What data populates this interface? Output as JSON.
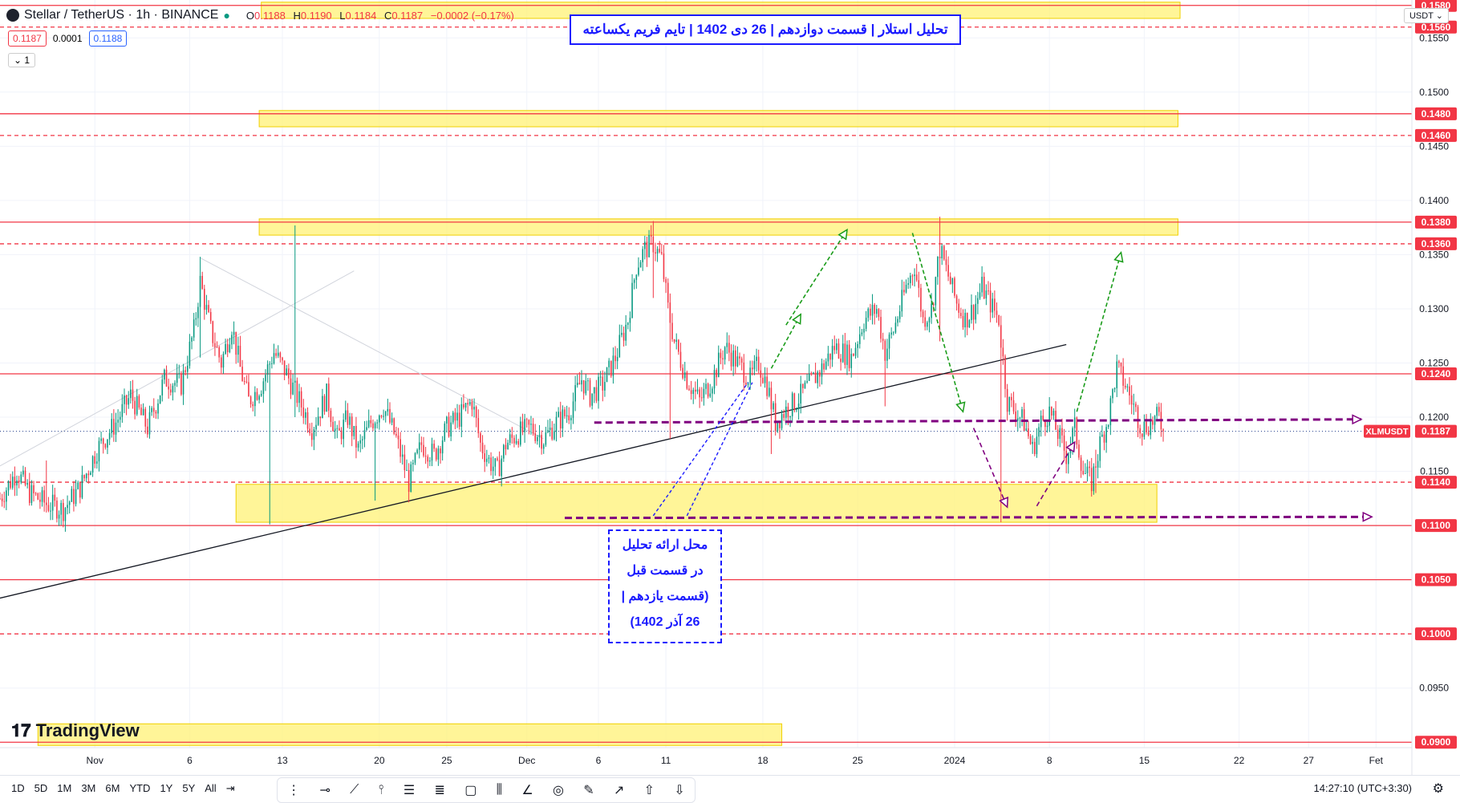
{
  "header": {
    "symbol_label": "Stellar / TetherUS · 1h · BINANCE",
    "ohlc": [
      {
        "k": "O",
        "v": "0.1188"
      },
      {
        "k": "H",
        "v": "0.1190"
      },
      {
        "k": "L",
        "v": "0.1184"
      },
      {
        "k": "C",
        "v": "0.1187"
      },
      {
        "k": "",
        "v": "−0.0002 (−0.17%)"
      }
    ],
    "sell_price": "0.1187",
    "spread": "0.0001",
    "buy_price": "0.1188",
    "collapse_label": "1",
    "currency": "USDT"
  },
  "title": "تحلیل استلار | قسمت دوازدهم | 26 دی 1402 | تایم فریم یکساعته",
  "note_lines": [
    "محل ارائه تحلیل",
    "در قسمت قبل",
    "(قسمت یازدهم |",
    "26 آذر 1402)"
  ],
  "colors": {
    "up": "#089981",
    "down": "#f23645",
    "level_line": "#f23645",
    "zone": "#fff176",
    "green_arrow": "#1a9c1a",
    "purple": "#800080",
    "blue_note": "#1a1aff",
    "trendline": "#131722",
    "price_tag": "#f23645",
    "axis_text": "#131722"
  },
  "chart_data": {
    "type": "candlestick",
    "symbol": "XLMUSDT",
    "last_price": 0.1187,
    "ylim": [
      0.0895,
      0.1585
    ],
    "y_ticks": [
      "0.0950",
      "0.1000",
      "0.1050",
      "0.1100",
      "0.1150",
      "0.1200",
      "0.1250",
      "0.1300",
      "0.1350",
      "0.1400",
      "0.1450",
      "0.1500",
      "0.1550"
    ],
    "x_ticks": [
      {
        "label": "Nov",
        "idx": 45
      },
      {
        "label": "6",
        "idx": 90
      },
      {
        "label": "13",
        "idx": 134
      },
      {
        "label": "20",
        "idx": 180
      },
      {
        "label": "25",
        "idx": 212
      },
      {
        "label": "Dec",
        "idx": 250
      },
      {
        "label": "6",
        "idx": 284
      },
      {
        "label": "11",
        "idx": 316
      },
      {
        "label": "18",
        "idx": 362
      },
      {
        "label": "25",
        "idx": 407
      },
      {
        "label": "2024",
        "idx": 453
      },
      {
        "label": "8",
        "idx": 498
      },
      {
        "label": "15",
        "idx": 543
      },
      {
        "label": "22",
        "idx": 588
      },
      {
        "label": "27",
        "idx": 621
      },
      {
        "label": "Fet",
        "idx": 653
      }
    ],
    "n_slots": 670,
    "last_index": 552,
    "solid_levels": [
      0.158,
      0.148,
      0.138,
      0.124,
      0.11,
      0.105,
      0.09
    ],
    "dashed_levels": [
      0.156,
      0.146,
      0.136,
      0.114,
      0.1
    ],
    "level_tags": [
      "0.1580",
      "0.1560",
      "0.1480",
      "0.1460",
      "0.1380",
      "0.1360",
      "0.1240",
      "0.1140",
      "0.1100",
      "0.1050",
      "0.1000",
      "0.0900"
    ],
    "zones": [
      {
        "i0": 124,
        "i1": 560,
        "p0": 0.1568,
        "p1": 0.1583
      },
      {
        "i0": 123,
        "i1": 559,
        "p0": 0.1468,
        "p1": 0.1483
      },
      {
        "i0": 123,
        "i1": 559,
        "p0": 0.1368,
        "p1": 0.1383
      },
      {
        "i0": 112,
        "i1": 549,
        "p0": 0.1103,
        "p1": 0.1138
      },
      {
        "i0": 18,
        "i1": 371,
        "p0": 0.0897,
        "p1": 0.0917
      }
    ],
    "trendline": {
      "i0": 0,
      "p0": 0.1033,
      "i1": 506,
      "p1": 0.1267
    },
    "thin_lines": [
      {
        "i0": 0,
        "p0": 0.1155,
        "i1": 168,
        "p1": 0.1335
      },
      {
        "i0": 95,
        "p0": 0.1347,
        "i1": 258,
        "p1": 0.118
      }
    ],
    "purple_lines": [
      {
        "i0": 282,
        "p0": 0.1195,
        "i1": 646,
        "p1": 0.1198,
        "arrow": true
      },
      {
        "i0": 268,
        "p0": 0.1107,
        "i1": 651,
        "p1": 0.1108,
        "arrow": true
      },
      {
        "i0": 462,
        "p0": 0.119,
        "i1": 478,
        "p1": 0.1117,
        "arrow": true
      },
      {
        "i0": 492,
        "p0": 0.1118,
        "i1": 510,
        "p1": 0.1177,
        "arrow": true
      }
    ],
    "green_arrows": [
      {
        "i0": 366,
        "p0": 0.1245,
        "i1": 380,
        "p1": 0.1295
      },
      {
        "i0": 373,
        "p0": 0.1285,
        "i1": 402,
        "p1": 0.1373
      },
      {
        "i0": 433,
        "p0": 0.137,
        "i1": 457,
        "p1": 0.1205
      },
      {
        "i0": 511,
        "p0": 0.1205,
        "i1": 532,
        "p1": 0.1352
      }
    ],
    "blue_dashed": [
      {
        "i0": 310,
        "p0": 0.1109,
        "i1": 355,
        "p1": 0.1232
      },
      {
        "i0": 326,
        "p0": 0.1109,
        "i1": 357,
        "p1": 0.1232
      }
    ],
    "candles_sparse": [
      [
        0,
        0.1125
      ],
      [
        8,
        0.115
      ],
      [
        14,
        0.113
      ],
      [
        22,
        0.112
      ],
      [
        30,
        0.1115
      ],
      [
        38,
        0.1135
      ],
      [
        46,
        0.117
      ],
      [
        55,
        0.1195
      ],
      [
        62,
        0.122
      ],
      [
        70,
        0.119
      ],
      [
        78,
        0.1235
      ],
      [
        86,
        0.123
      ],
      [
        92,
        0.128
      ],
      [
        95,
        0.1325
      ],
      [
        100,
        0.128
      ],
      [
        105,
        0.125
      ],
      [
        110,
        0.1285
      ],
      [
        114,
        0.1245
      ],
      [
        118,
        0.1215
      ],
      [
        124,
        0.123
      ],
      [
        130,
        0.126
      ],
      [
        136,
        0.124
      ],
      [
        142,
        0.1215
      ],
      [
        148,
        0.119
      ],
      [
        155,
        0.122
      ],
      [
        160,
        0.118
      ],
      [
        165,
        0.12
      ],
      [
        170,
        0.117
      ],
      [
        176,
        0.1195
      ],
      [
        182,
        0.121
      ],
      [
        188,
        0.118
      ],
      [
        194,
        0.114
      ],
      [
        200,
        0.1175
      ],
      [
        206,
        0.1165
      ],
      [
        212,
        0.119
      ],
      [
        218,
        0.12
      ],
      [
        224,
        0.1215
      ],
      [
        228,
        0.1175
      ],
      [
        232,
        0.116
      ],
      [
        236,
        0.115
      ],
      [
        240,
        0.1175
      ],
      [
        246,
        0.1185
      ],
      [
        252,
        0.119
      ],
      [
        258,
        0.118
      ],
      [
        264,
        0.1195
      ],
      [
        270,
        0.1205
      ],
      [
        276,
        0.1235
      ],
      [
        280,
        0.122
      ],
      [
        286,
        0.123
      ],
      [
        292,
        0.1255
      ],
      [
        298,
        0.129
      ],
      [
        302,
        0.134
      ],
      [
        306,
        0.1355
      ],
      [
        310,
        0.136
      ],
      [
        314,
        0.1345
      ],
      [
        317,
        0.13
      ],
      [
        320,
        0.127
      ],
      [
        326,
        0.1235
      ],
      [
        332,
        0.1215
      ],
      [
        338,
        0.1235
      ],
      [
        344,
        0.1265
      ],
      [
        350,
        0.125
      ],
      [
        356,
        0.1235
      ],
      [
        360,
        0.125
      ],
      [
        364,
        0.123
      ],
      [
        368,
        0.1195
      ],
      [
        372,
        0.1205
      ],
      [
        378,
        0.1215
      ],
      [
        384,
        0.123
      ],
      [
        390,
        0.1245
      ],
      [
        396,
        0.1265
      ],
      [
        400,
        0.126
      ],
      [
        404,
        0.1255
      ],
      [
        410,
        0.129
      ],
      [
        416,
        0.13
      ],
      [
        420,
        0.126
      ],
      [
        424,
        0.128
      ],
      [
        430,
        0.132
      ],
      [
        434,
        0.134
      ],
      [
        438,
        0.129
      ],
      [
        442,
        0.13
      ],
      [
        446,
        0.1355
      ],
      [
        450,
        0.133
      ],
      [
        454,
        0.1305
      ],
      [
        458,
        0.129
      ],
      [
        462,
        0.13
      ],
      [
        466,
        0.132
      ],
      [
        470,
        0.1305
      ],
      [
        474,
        0.129
      ],
      [
        478,
        0.1215
      ],
      [
        482,
        0.1205
      ],
      [
        486,
        0.1195
      ],
      [
        490,
        0.117
      ],
      [
        494,
        0.1195
      ],
      [
        498,
        0.1205
      ],
      [
        502,
        0.1185
      ],
      [
        506,
        0.1165
      ],
      [
        510,
        0.119
      ],
      [
        514,
        0.115
      ],
      [
        518,
        0.114
      ],
      [
        522,
        0.1175
      ],
      [
        526,
        0.12
      ],
      [
        530,
        0.1245
      ],
      [
        534,
        0.123
      ],
      [
        538,
        0.121
      ],
      [
        542,
        0.119
      ],
      [
        546,
        0.1195
      ],
      [
        550,
        0.12
      ],
      [
        552,
        0.1187
      ]
    ],
    "spikes": [
      {
        "idx": 22,
        "low": 0.1112,
        "high": 0.116
      },
      {
        "idx": 95,
        "low": 0.1255,
        "high": 0.1348
      },
      {
        "idx": 128,
        "low": 0.1101,
        "high": 0.124
      },
      {
        "idx": 140,
        "low": 0.12,
        "high": 0.1377
      },
      {
        "idx": 178,
        "low": 0.1123,
        "high": 0.118
      },
      {
        "idx": 310,
        "low": 0.131,
        "high": 0.1381
      },
      {
        "idx": 318,
        "low": 0.118,
        "high": 0.13
      },
      {
        "idx": 366,
        "low": 0.1166,
        "high": 0.1215
      },
      {
        "idx": 420,
        "low": 0.121,
        "high": 0.1255
      },
      {
        "idx": 446,
        "low": 0.127,
        "high": 0.1385
      },
      {
        "idx": 475,
        "low": 0.1103,
        "high": 0.12
      },
      {
        "idx": 520,
        "low": 0.113,
        "high": 0.117
      }
    ]
  },
  "toolbar": {
    "timeframes": [
      "1D",
      "5D",
      "1M",
      "3M",
      "6M",
      "YTD",
      "1Y",
      "5Y",
      "All"
    ],
    "time_label": "14:27:10 (UTC+3:30)",
    "brand": "TradingView"
  }
}
